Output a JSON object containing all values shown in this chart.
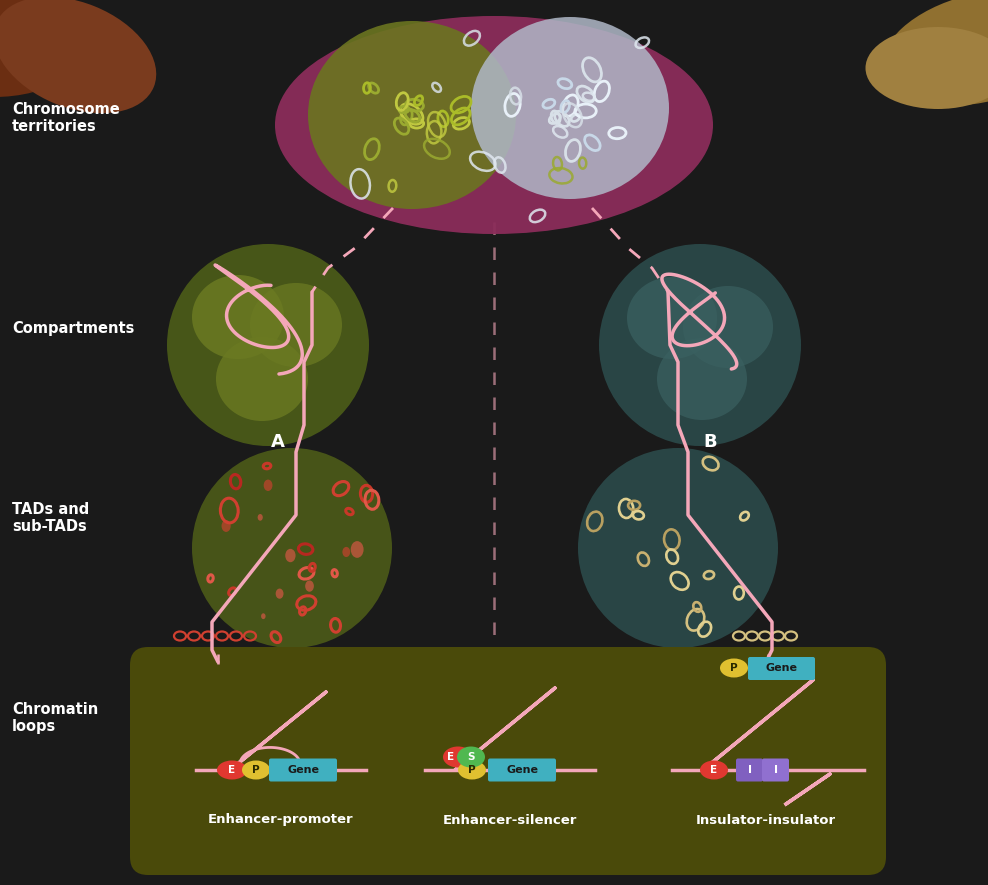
{
  "bg_color": "#1a1a1a",
  "text_color": "#ffffff",
  "pink_line": "#f4a7b9",
  "labels": {
    "chromosome_territories": "Chromosome\nterritories",
    "compartments": "Compartments",
    "tads": "TADs and\nsub-TADs",
    "chromatin_loops": "Chromatin\nloops"
  },
  "colors": {
    "brown_blob1": "#6b2e12",
    "brown_blob2": "#7a3b1e",
    "gold_blob1": "#907030",
    "gold_blob2": "#a08040",
    "magenta_territory": "#8b2d5a",
    "olive_territory": "#6b7520",
    "silver_territory": "#b0b8c8",
    "olive_loop_color": "#9aaa30",
    "silver_loop_color": "#d8e0e8",
    "olive_comp_bg": "#4a5a18",
    "olive_comp_fg": "#6b7a22",
    "teal_comp_bg": "#2a4848",
    "teal_comp_fg": "#3a6060",
    "tad_olive_bg": "#4a5818",
    "tad_teal_bg": "#2a4848",
    "red_loop1": "#d04030",
    "red_loop2": "#c83828",
    "red_loop3": "#e05848",
    "red_loop4": "#b82820",
    "wheat_loop1": "#d4c080",
    "wheat_loop2": "#c8b070",
    "wheat_loop3": "#e0d090",
    "wheat_loop4": "#b8a060",
    "loop_panel_bg": "#4a4a0a",
    "enhancer_red": "#e03830",
    "promoter_yellow": "#e0c030",
    "gene_cyan": "#40b0c0",
    "silencer_green": "#50b850",
    "insulator_purple1": "#8060c0",
    "insulator_purple2": "#9070d0",
    "red_salmon": "#d04030",
    "wheat_tan": "#d4c080"
  }
}
